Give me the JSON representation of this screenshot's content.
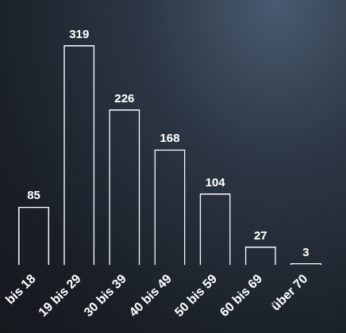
{
  "chart_data": {
    "type": "bar",
    "categories": [
      "bis 18",
      "19 bis 29",
      "30 bis 39",
      "40 bis 49",
      "50 bis 59",
      "60 bis 69",
      "über 70"
    ],
    "values": [
      85,
      319,
      226,
      168,
      104,
      27,
      3
    ],
    "color": "#ffffff",
    "grid": false,
    "data_labels": true,
    "tick_labels": "x"
  }
}
